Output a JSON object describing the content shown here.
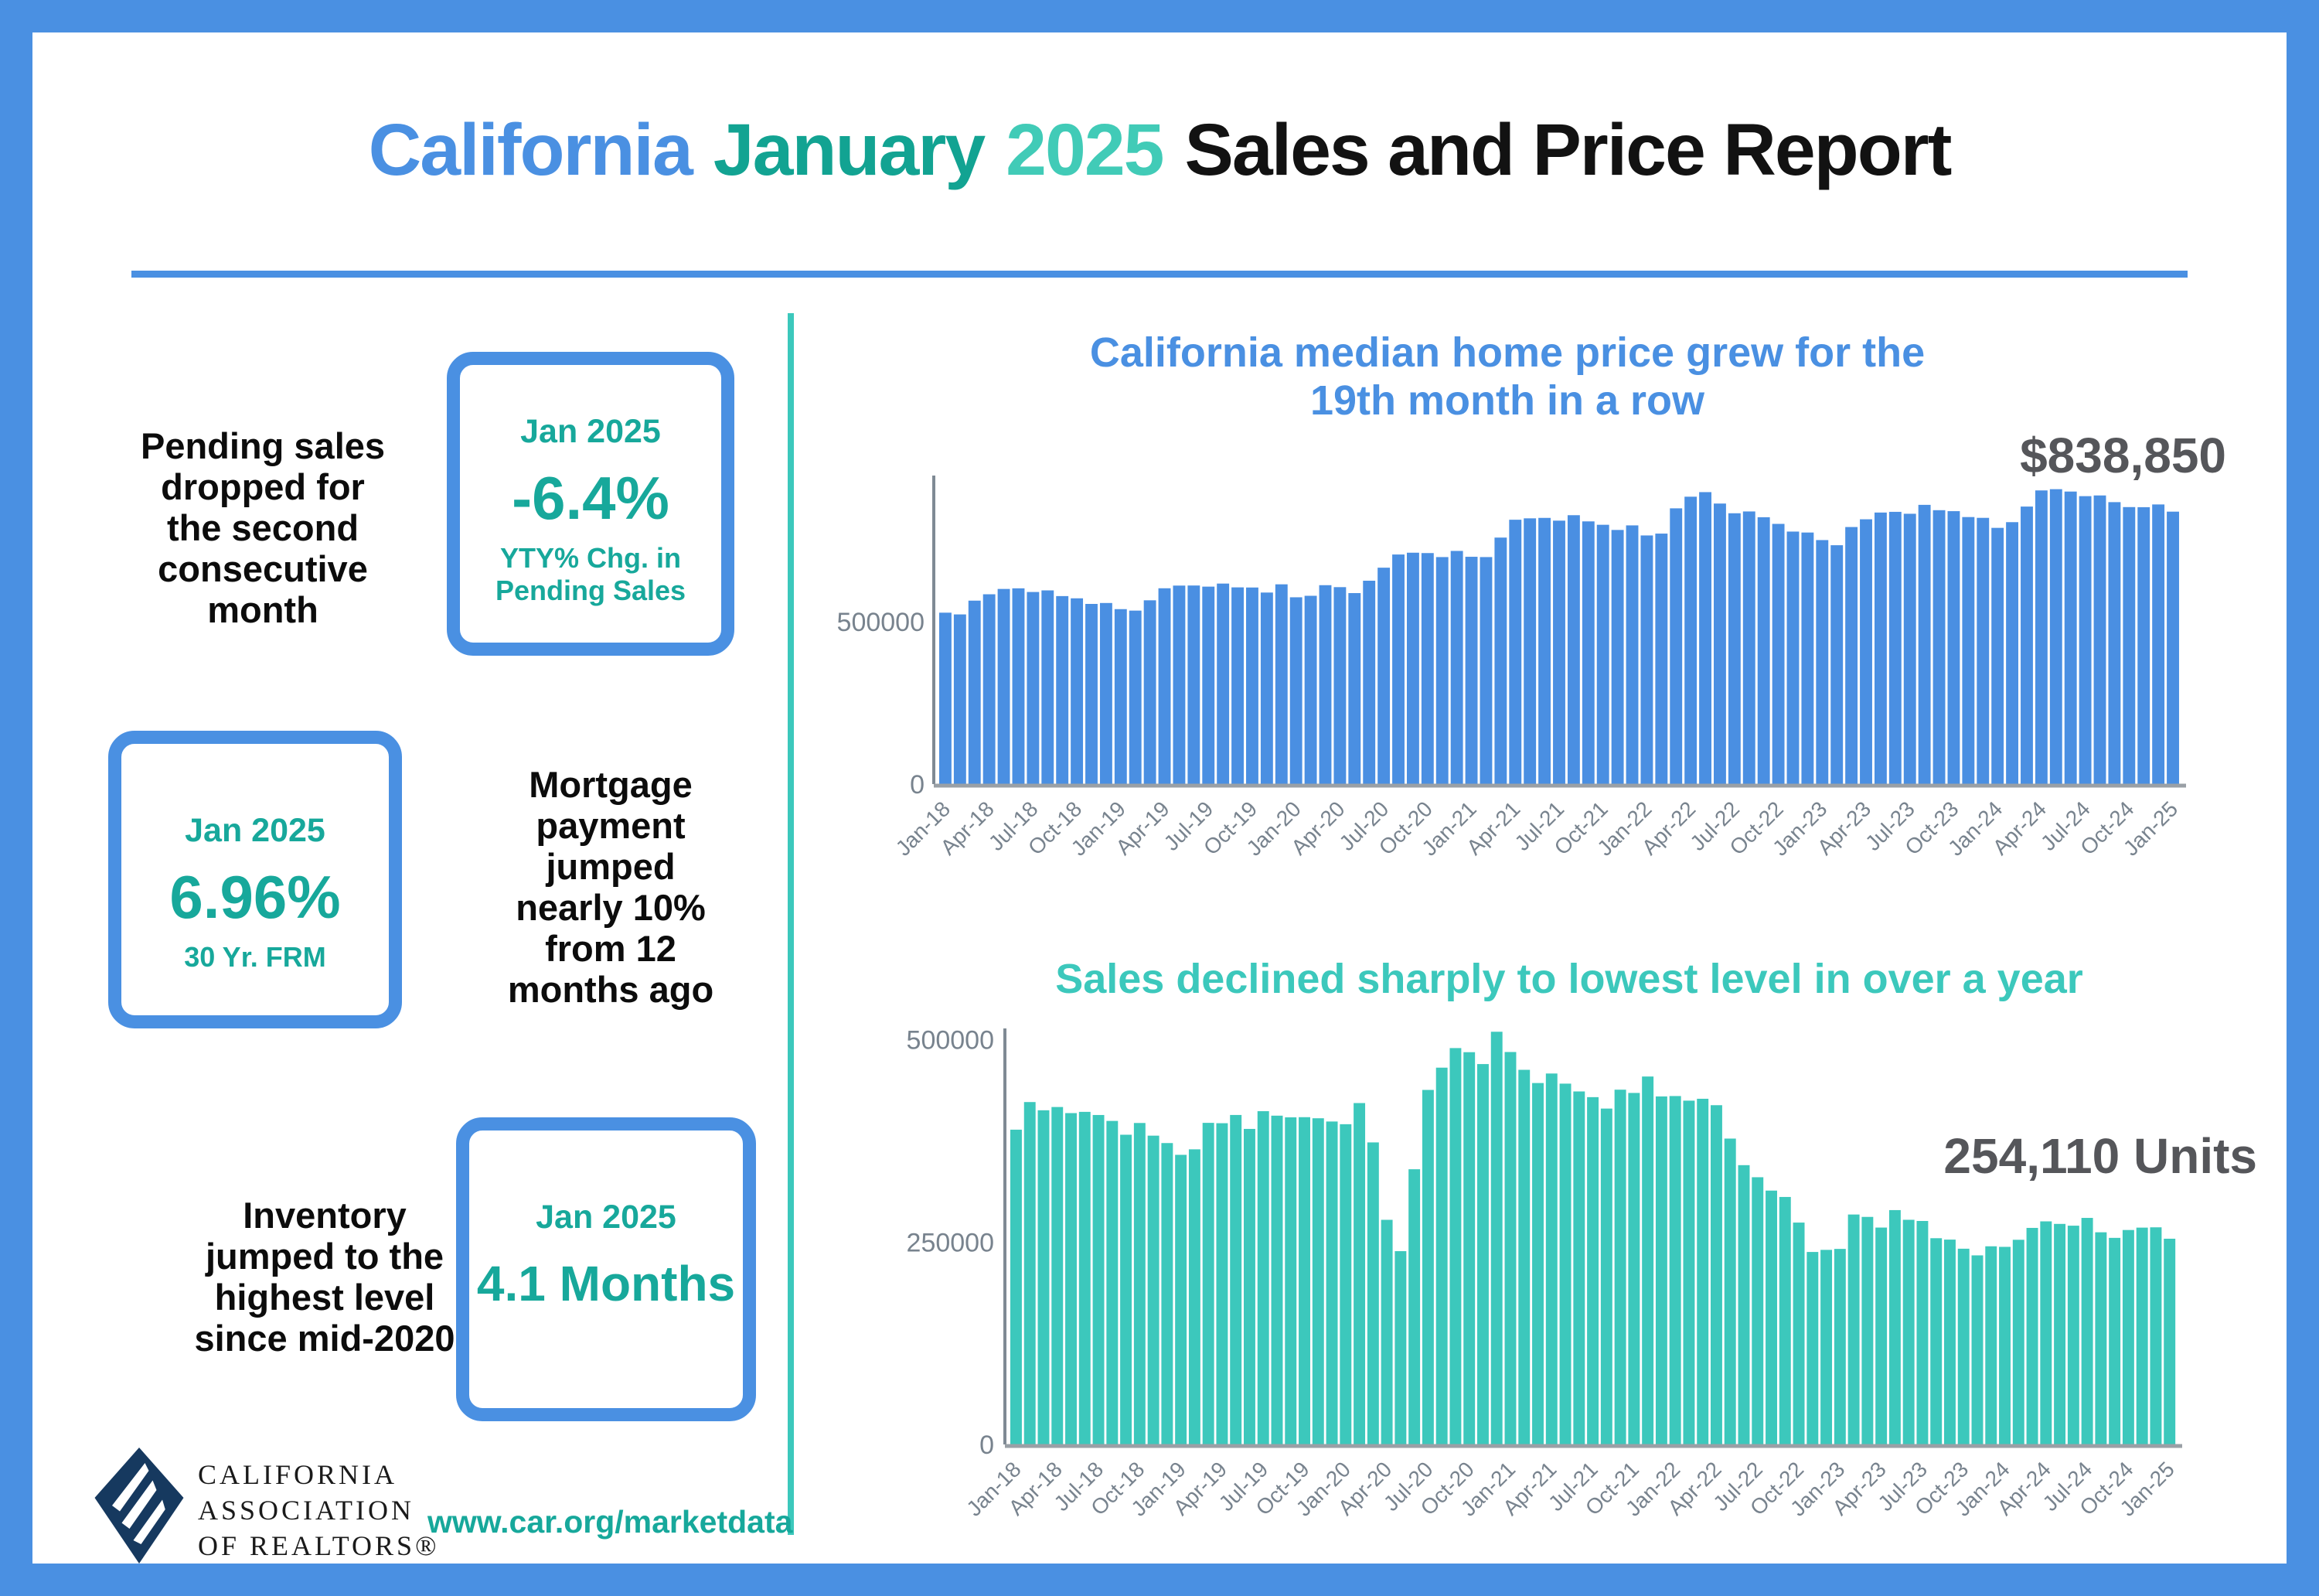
{
  "header": {
    "title_parts": [
      {
        "text": "California",
        "color": "#4a90e2"
      },
      {
        "text": "January",
        "color": "#12a392"
      },
      {
        "text": "2025",
        "color": "#41cbb7"
      },
      {
        "text": "Sales and Price Report",
        "color": "#121212"
      }
    ]
  },
  "left_panel": {
    "pending": {
      "text": "Pending sales\ndropped for\nthe second\nconsecutive\nmonth",
      "box": {
        "period": "Jan 2025",
        "value": "-6.4%",
        "caption": "YTY% Chg. in\nPending Sales"
      }
    },
    "mortgage": {
      "box": {
        "period": "Jan 2025",
        "value": "6.96%",
        "caption": "30 Yr. FRM"
      },
      "text": "Mortgage\npayment\njumped\nnearly 10%\nfrom 12\nmonths ago"
    },
    "inventory": {
      "text": "Inventory\njumped to the\nhighest level\nsince mid-2020",
      "box": {
        "period": "Jan 2025",
        "value": "4.1 Months"
      }
    }
  },
  "footer": {
    "logo_lines": [
      "CALIFORNIA",
      "ASSOCIATION",
      "OF REALTORS®"
    ],
    "logo_color": "#16395f",
    "link": "www.car.org/marketdata",
    "link_color": "#17a89b"
  },
  "chart_data": [
    {
      "type": "bar",
      "title": "California median home price grew for the\n19th month in a row",
      "title_color": "#4a90e2",
      "bar_color": "#4a8fe2",
      "annotation": "$838,850",
      "annotation_color": "#55565a",
      "xlabel": "",
      "ylabel": "",
      "ylim": [
        0,
        950000
      ],
      "grid": false,
      "legend": false,
      "x_tick_every": 3,
      "yticks": [
        {
          "value": 0,
          "label": "0"
        },
        {
          "value": 500000,
          "label": "500000"
        }
      ],
      "categories": [
        "Jan-18",
        "Feb-18",
        "Mar-18",
        "Apr-18",
        "May-18",
        "Jun-18",
        "Jul-18",
        "Aug-18",
        "Sep-18",
        "Oct-18",
        "Nov-18",
        "Dec-18",
        "Jan-19",
        "Feb-19",
        "Mar-19",
        "Apr-19",
        "May-19",
        "Jun-19",
        "Jul-19",
        "Aug-19",
        "Sep-19",
        "Oct-19",
        "Nov-19",
        "Dec-19",
        "Jan-20",
        "Feb-20",
        "Mar-20",
        "Apr-20",
        "May-20",
        "Jun-20",
        "Jul-20",
        "Aug-20",
        "Sep-20",
        "Oct-20",
        "Nov-20",
        "Dec-20",
        "Jan-21",
        "Feb-21",
        "Mar-21",
        "Apr-21",
        "May-21",
        "Jun-21",
        "Jul-21",
        "Aug-21",
        "Sep-21",
        "Oct-21",
        "Nov-21",
        "Dec-21",
        "Jan-22",
        "Feb-22",
        "Mar-22",
        "Apr-22",
        "May-22",
        "Jun-22",
        "Jul-22",
        "Aug-22",
        "Sep-22",
        "Oct-22",
        "Nov-22",
        "Dec-22",
        "Jan-23",
        "Feb-23",
        "Mar-23",
        "Apr-23",
        "May-23",
        "Jun-23",
        "Jul-23",
        "Aug-23",
        "Sep-23",
        "Oct-23",
        "Nov-23",
        "Dec-23",
        "Jan-24",
        "Feb-24",
        "Mar-24",
        "Apr-24",
        "May-24",
        "Jun-24",
        "Jul-24",
        "Aug-24",
        "Sep-24",
        "Oct-24",
        "Nov-24",
        "Dec-24",
        "Jan-25"
      ],
      "values": [
        527780,
        522440,
        564830,
        584460,
        600860,
        602760,
        591460,
        596410,
        578850,
        572000,
        554760,
        557600,
        538690,
        534140,
        565880,
        602920,
        611190,
        611420,
        607990,
        617410,
        605680,
        605280,
        589770,
        615090,
        575160,
        579770,
        612440,
        606410,
        588070,
        626170,
        666320,
        706900,
        712430,
        711300,
        699000,
        717930,
        699890,
        699000,
        758990,
        813980,
        818260,
        819630,
        811170,
        827940,
        808890,
        798440,
        782480,
        796570,
        765580,
        771270,
        849080,
        884890,
        898980,
        863790,
        833910,
        839460,
        821680,
        801190,
        777500,
        774580,
        751330,
        735480,
        791490,
        815340,
        836110,
        838260,
        832340,
        859800,
        843340,
        840360,
        822200,
        819740,
        788940,
        806490,
        854490,
        904210,
        908040,
        900720,
        886560,
        888740,
        868150,
        852880,
        852600,
        861020,
        838850
      ]
    },
    {
      "type": "bar",
      "title": "Sales declined sharply to lowest level in over a year",
      "title_color": "#3cc8bc",
      "bar_color": "#3cc8bc",
      "annotation": "254,110 Units",
      "annotation_color": "#55565a",
      "xlabel": "",
      "ylabel": "",
      "ylim": [
        0,
        515000
      ],
      "grid": false,
      "legend": false,
      "x_tick_every": 3,
      "yticks": [
        {
          "value": 0,
          "label": "0"
        },
        {
          "value": 250000,
          "label": "250000"
        },
        {
          "value": 500000,
          "label": "500000"
        }
      ],
      "categories": [
        "Jan-18",
        "Feb-18",
        "Mar-18",
        "Apr-18",
        "May-18",
        "Jun-18",
        "Jul-18",
        "Aug-18",
        "Sep-18",
        "Oct-18",
        "Nov-18",
        "Dec-18",
        "Jan-19",
        "Feb-19",
        "Mar-19",
        "Apr-19",
        "May-19",
        "Jun-19",
        "Jul-19",
        "Aug-19",
        "Sep-19",
        "Oct-19",
        "Nov-19",
        "Dec-19",
        "Jan-20",
        "Feb-20",
        "Mar-20",
        "Apr-20",
        "May-20",
        "Jun-20",
        "Jul-20",
        "Aug-20",
        "Sep-20",
        "Oct-20",
        "Nov-20",
        "Dec-20",
        "Jan-21",
        "Feb-21",
        "Mar-21",
        "Apr-21",
        "May-21",
        "Jun-21",
        "Jul-21",
        "Aug-21",
        "Sep-21",
        "Oct-21",
        "Nov-21",
        "Dec-21",
        "Jan-22",
        "Feb-22",
        "Mar-22",
        "Apr-22",
        "May-22",
        "Jun-22",
        "Jul-22",
        "Aug-22",
        "Sep-22",
        "Oct-22",
        "Nov-22",
        "Dec-22",
        "Jan-23",
        "Feb-23",
        "Mar-23",
        "Apr-23",
        "May-23",
        "Jun-23",
        "Jul-23",
        "Aug-23",
        "Sep-23",
        "Oct-23",
        "Nov-23",
        "Dec-23",
        "Jan-24",
        "Feb-24",
        "Mar-24",
        "Apr-24",
        "May-24",
        "Jun-24",
        "Jul-24",
        "Aug-24",
        "Sep-24",
        "Oct-24",
        "Nov-24",
        "Dec-24",
        "Jan-25"
      ],
      "values": [
        388800,
        422910,
        412750,
        416790,
        409270,
        410800,
        406920,
        399600,
        382550,
        397060,
        381400,
        372260,
        357730,
        364520,
        397210,
        396780,
        406960,
        389730,
        411630,
        406100,
        404030,
        404240,
        402880,
        398880,
        395550,
        421670,
        373070,
        277440,
        238740,
        339910,
        437890,
        465400,
        489590,
        484510,
        469830,
        509750,
        484730,
        462720,
        446410,
        458170,
        445660,
        436020,
        428980,
        414860,
        438190,
        434170,
        454450,
        429860,
        430340,
        424640,
        426970,
        419040,
        377790,
        344970,
        330050,
        313540,
        305680,
        274040,
        237740,
        240330,
        241520,
        284010,
        281050,
        267880,
        289460,
        277490,
        276030,
        254740,
        253010,
        241770,
        233540,
        244750,
        244050,
        252800,
        267470,
        275540,
        272410,
        270200,
        279810,
        262050,
        255160,
        264870,
        267800,
        268180,
        254110
      ]
    }
  ]
}
